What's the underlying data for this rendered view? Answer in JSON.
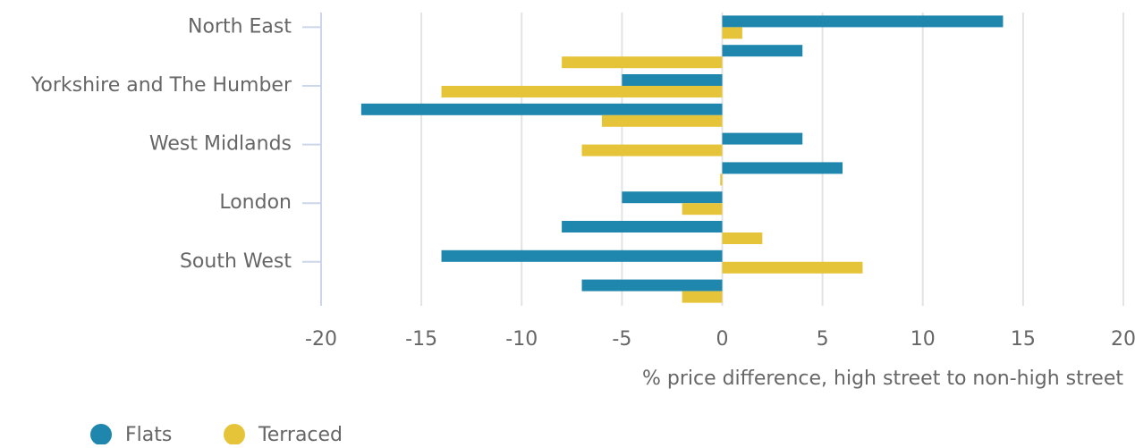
{
  "chart_data": {
    "type": "barh",
    "categories": [
      "North East",
      null,
      "Yorkshire and The Humber",
      null,
      "West Midlands",
      null,
      "London",
      null,
      "South West",
      null
    ],
    "series": [
      {
        "name": "Flats",
        "color": "#1f86ad",
        "values": [
          14,
          4,
          -5,
          -18,
          4,
          6,
          -5,
          -8,
          -14,
          -7
        ]
      },
      {
        "name": "Terraced",
        "color": "#e6c43a",
        "values": [
          1,
          -8,
          -14,
          -6,
          -7,
          -0.1,
          -2,
          2,
          7,
          -2
        ]
      }
    ],
    "xlim": [
      -20,
      20
    ],
    "xticks": [
      -20,
      -15,
      -10,
      -5,
      0,
      5,
      10,
      15,
      20
    ],
    "xlabel": "% price difference, high street to non-high street",
    "grid": true,
    "legend": "bottom-left"
  }
}
